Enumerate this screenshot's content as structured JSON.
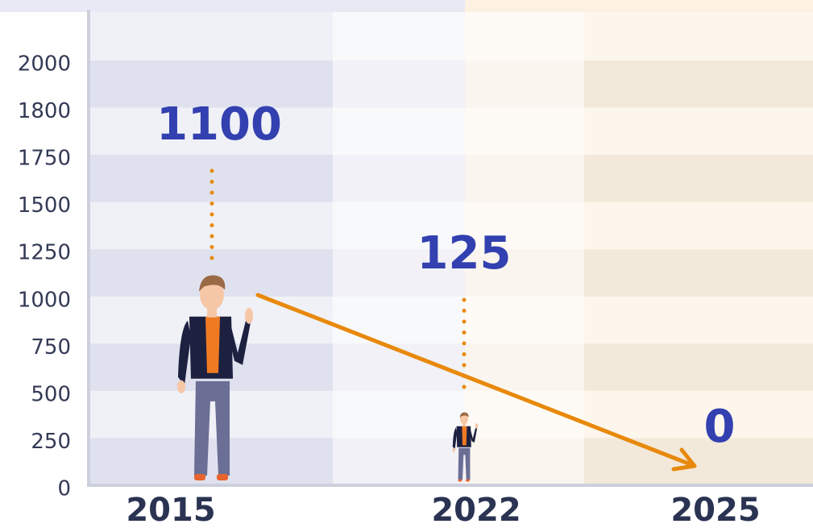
{
  "chart_data": {
    "type": "pictogram",
    "categories": [
      "2015",
      "2022",
      "2025"
    ],
    "values": [
      1100,
      125,
      0
    ],
    "yticks": [
      0,
      250,
      500,
      750,
      1000,
      1250,
      1500,
      1750,
      1800,
      2000
    ],
    "color": "#e8890c"
  }
}
